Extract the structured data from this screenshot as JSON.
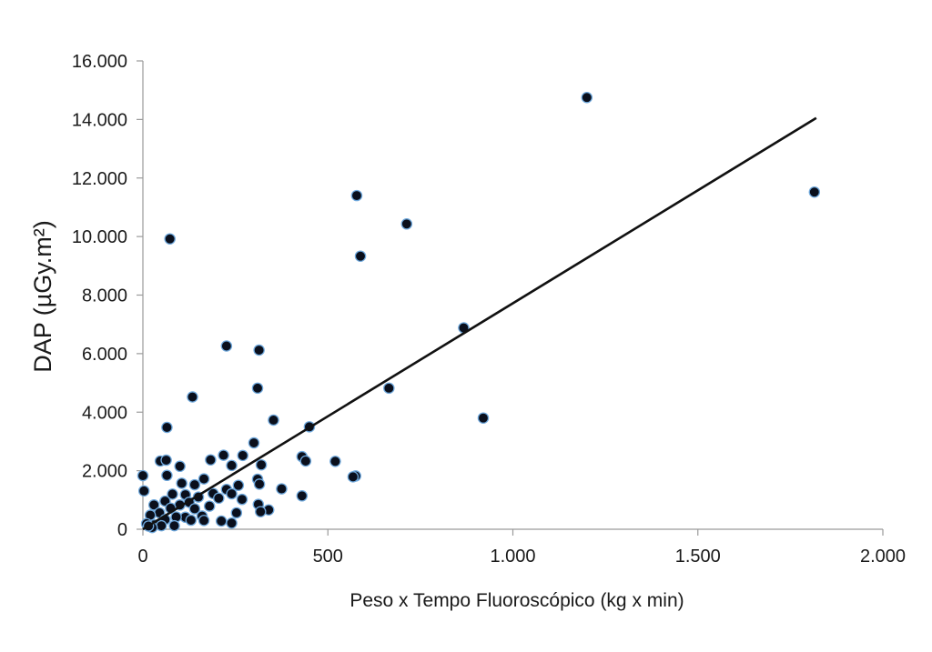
{
  "chart_data": {
    "type": "scatter",
    "title": "",
    "xlabel": "Peso x Tempo Fluoroscópico (kg x min)",
    "ylabel": "DAP (µGy.m²)",
    "xlim": [
      0,
      2000
    ],
    "ylim": [
      0,
      16000
    ],
    "x_ticks": [
      0,
      500,
      1000,
      1500,
      2000
    ],
    "x_tick_labels": [
      "0",
      "500",
      "1.000",
      "1.500",
      "2.000"
    ],
    "y_ticks": [
      0,
      2000,
      4000,
      6000,
      8000,
      10000,
      12000,
      14000,
      16000
    ],
    "y_tick_labels": [
      "0",
      "2.000",
      "4.000",
      "6.000",
      "8.000",
      "10.000",
      "12.000",
      "14.000",
      "16.000"
    ],
    "grid": false,
    "legend": "none",
    "marker_color": "#0a0f1c",
    "marker_edge_color": "#6fa8dc",
    "trendline_color": "#111111",
    "trendline": {
      "x": [
        0,
        1820
      ],
      "y": [
        0,
        14050
      ]
    },
    "points": [
      {
        "x": 1200,
        "y": 14750
      },
      {
        "x": 1815,
        "y": 11520
      },
      {
        "x": 578,
        "y": 11400
      },
      {
        "x": 713,
        "y": 10430
      },
      {
        "x": 73,
        "y": 9920
      },
      {
        "x": 588,
        "y": 9330
      },
      {
        "x": 867,
        "y": 6880
      },
      {
        "x": 226,
        "y": 6260
      },
      {
        "x": 314,
        "y": 6120
      },
      {
        "x": 310,
        "y": 4820
      },
      {
        "x": 665,
        "y": 4820
      },
      {
        "x": 134,
        "y": 4520
      },
      {
        "x": 920,
        "y": 3800
      },
      {
        "x": 353,
        "y": 3730
      },
      {
        "x": 450,
        "y": 3500
      },
      {
        "x": 65,
        "y": 3480
      },
      {
        "x": 300,
        "y": 2950
      },
      {
        "x": 270,
        "y": 2520
      },
      {
        "x": 218,
        "y": 2530
      },
      {
        "x": 430,
        "y": 2480
      },
      {
        "x": 183,
        "y": 2370
      },
      {
        "x": 440,
        "y": 2330
      },
      {
        "x": 520,
        "y": 2320
      },
      {
        "x": 47,
        "y": 2330
      },
      {
        "x": 63,
        "y": 2360
      },
      {
        "x": 100,
        "y": 2150
      },
      {
        "x": 240,
        "y": 2180
      },
      {
        "x": 320,
        "y": 2200
      },
      {
        "x": 0,
        "y": 1830
      },
      {
        "x": 65,
        "y": 1840
      },
      {
        "x": 575,
        "y": 1820
      },
      {
        "x": 568,
        "y": 1790
      },
      {
        "x": 310,
        "y": 1710
      },
      {
        "x": 165,
        "y": 1720
      },
      {
        "x": 258,
        "y": 1500
      },
      {
        "x": 315,
        "y": 1540
      },
      {
        "x": 105,
        "y": 1570
      },
      {
        "x": 140,
        "y": 1520
      },
      {
        "x": 375,
        "y": 1380
      },
      {
        "x": 3,
        "y": 1310
      },
      {
        "x": 226,
        "y": 1360
      },
      {
        "x": 190,
        "y": 1220
      },
      {
        "x": 240,
        "y": 1210
      },
      {
        "x": 430,
        "y": 1140
      },
      {
        "x": 80,
        "y": 1200
      },
      {
        "x": 115,
        "y": 1180
      },
      {
        "x": 150,
        "y": 1100
      },
      {
        "x": 205,
        "y": 1060
      },
      {
        "x": 268,
        "y": 1020
      },
      {
        "x": 60,
        "y": 960
      },
      {
        "x": 125,
        "y": 920
      },
      {
        "x": 312,
        "y": 850
      },
      {
        "x": 30,
        "y": 830
      },
      {
        "x": 100,
        "y": 830
      },
      {
        "x": 180,
        "y": 790
      },
      {
        "x": 75,
        "y": 720
      },
      {
        "x": 140,
        "y": 700
      },
      {
        "x": 340,
        "y": 660
      },
      {
        "x": 318,
        "y": 600
      },
      {
        "x": 253,
        "y": 560
      },
      {
        "x": 45,
        "y": 560
      },
      {
        "x": 20,
        "y": 480
      },
      {
        "x": 160,
        "y": 450
      },
      {
        "x": 115,
        "y": 410
      },
      {
        "x": 90,
        "y": 420
      },
      {
        "x": 60,
        "y": 330
      },
      {
        "x": 165,
        "y": 300
      },
      {
        "x": 212,
        "y": 280
      },
      {
        "x": 130,
        "y": 310
      },
      {
        "x": 240,
        "y": 210
      },
      {
        "x": 10,
        "y": 190
      },
      {
        "x": 30,
        "y": 150
      },
      {
        "x": 50,
        "y": 120
      },
      {
        "x": 85,
        "y": 120
      },
      {
        "x": 25,
        "y": 60
      },
      {
        "x": 15,
        "y": 110
      }
    ]
  }
}
